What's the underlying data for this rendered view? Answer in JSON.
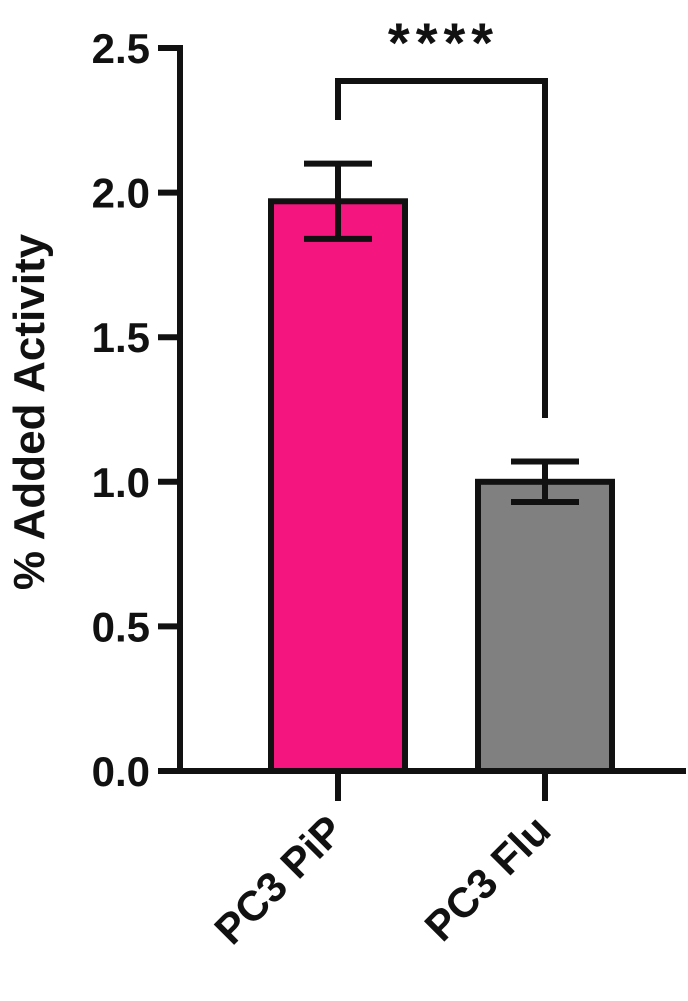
{
  "chart_data": {
    "type": "bar",
    "categories": [
      "PC3 PiP",
      "PC3 Flu"
    ],
    "values": [
      1.97,
      1.0
    ],
    "error": [
      0.13,
      0.07
    ],
    "bar_colors": [
      "#f5157f",
      "#808080"
    ],
    "ylabel": "% Added Activity",
    "ylim": [
      0,
      2.5
    ],
    "yticks": [
      0.0,
      0.5,
      1.0,
      1.5,
      2.0,
      2.5
    ],
    "ytick_labels": [
      "0.0",
      "0.5",
      "1.0",
      "1.5",
      "2.0",
      "2.5"
    ],
    "significance": {
      "label": "****",
      "between": [
        0,
        1
      ]
    },
    "grid": false,
    "legend": "none"
  }
}
